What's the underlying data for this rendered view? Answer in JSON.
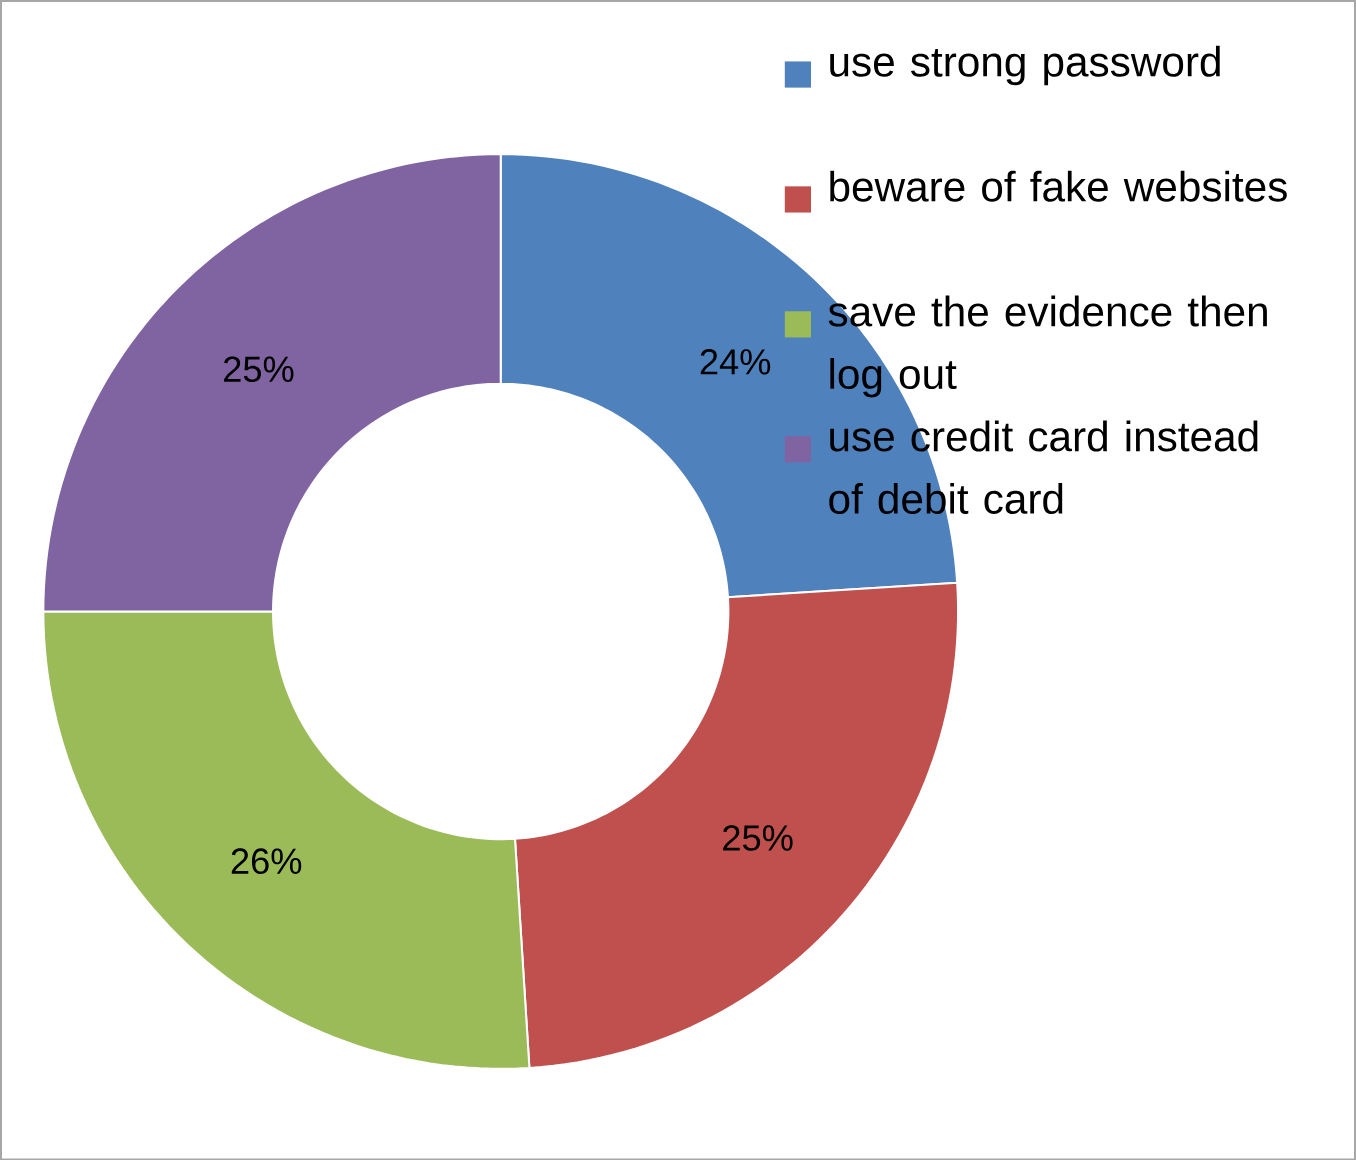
{
  "chart_data": {
    "type": "donut",
    "categories": [
      "use strong password",
      "beware of fake websites",
      "save the evidence then log out",
      "use credit card instead of debit card"
    ],
    "values": [
      24,
      25,
      26,
      25
    ],
    "colors": [
      "#4f81bd",
      "#c0504d",
      "#9bbb59",
      "#8064a2"
    ],
    "value_labels": [
      "24%",
      "25%",
      "26%",
      "25%"
    ],
    "legend": "top right"
  }
}
